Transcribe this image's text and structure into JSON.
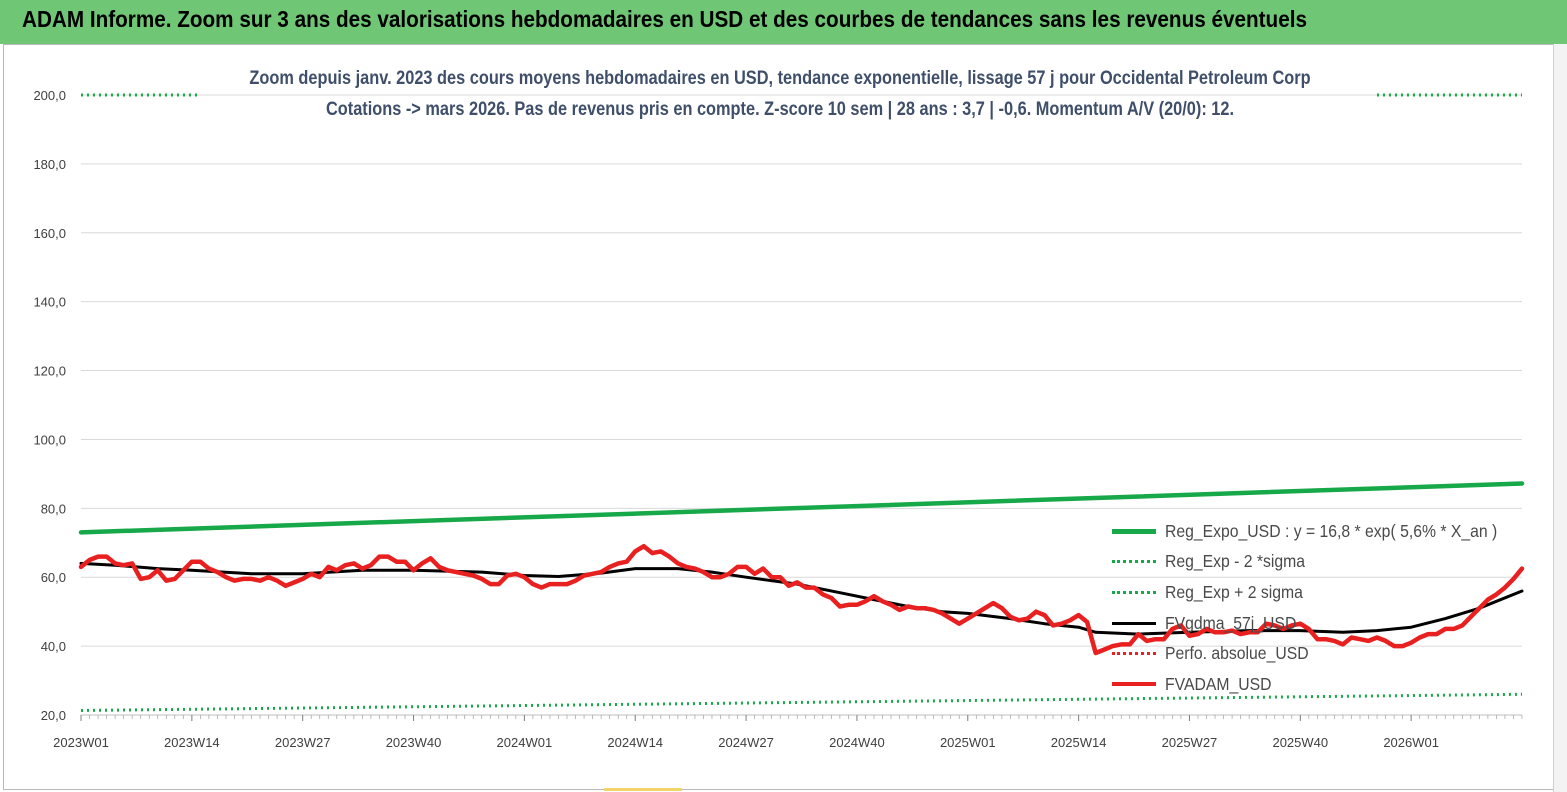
{
  "banner": {
    "title": "ADAM Informe. Zoom sur 3 ans des valorisations hebdomadaires en USD et des courbes de tendances sans les revenus éventuels"
  },
  "colors": {
    "banner_bg": "#6fc776",
    "reg_expo": "#17a84a",
    "gdma": "#000000",
    "fvadam": "#e82020",
    "grid": "#d9d9d9"
  },
  "chart_data": {
    "type": "line",
    "title_line1": "Zoom depuis janv. 2023 des cours moyens hebdomadaires en USD, tendance exponentielle, lissage 57 j pour Occidental Petroleum Corp",
    "title_line2": "Cotations -> mars 2026. Pas de revenus pris en  compte. Z-score 10 sem  | 28 ans : 3,7 | -0,6. Momentum A/V (20/0): 12.",
    "ylim": [
      20,
      200
    ],
    "y_ticks": [
      "20,0",
      "40,0",
      "60,0",
      "80,0",
      "100,0",
      "120,0",
      "140,0",
      "160,0",
      "180,0",
      "200,0"
    ],
    "x_start_week_index": 0,
    "x_end_week_index": 169,
    "x_ticks": [
      {
        "label": "2023W01",
        "week": 0
      },
      {
        "label": "2023W14",
        "week": 13
      },
      {
        "label": "2023W27",
        "week": 26
      },
      {
        "label": "2023W40",
        "week": 39
      },
      {
        "label": "2024W01",
        "week": 52
      },
      {
        "label": "2024W14",
        "week": 65
      },
      {
        "label": "2024W27",
        "week": 78
      },
      {
        "label": "2024W40",
        "week": 91
      },
      {
        "label": "2025W01",
        "week": 104
      },
      {
        "label": "2025W14",
        "week": 117
      },
      {
        "label": "2025W27",
        "week": 130
      },
      {
        "label": "2025W40",
        "week": 143
      },
      {
        "label": "2026W01",
        "week": 156
      }
    ],
    "legend": [
      "Reg_Expo_USD : y = 16,8 * exp( 5,6% *  X_an )",
      "Reg_Exp - 2 *sigma",
      "Reg_Exp + 2 sigma",
      "FVgdma_57j_USD",
      "Perfo. absolue_USD",
      "FVADAM_USD"
    ],
    "series": [
      {
        "name": "Reg_Expo_USD",
        "style": "solid-thick",
        "color": "#17a84a",
        "points": [
          [
            0,
            73.0
          ],
          [
            169,
            87.2
          ]
        ]
      },
      {
        "name": "Reg_Exp - 2 *sigma",
        "style": "dotted",
        "color": "#17a84a",
        "points": [
          [
            0,
            21.3
          ],
          [
            169,
            26.0
          ]
        ]
      },
      {
        "name": "Reg_Exp + 2 sigma",
        "style": "dotted",
        "color": "#17a84a",
        "points": [
          [
            0,
            200.0
          ],
          [
            14,
            200.0
          ],
          [
            null,
            null
          ],
          [
            152,
            200.0
          ],
          [
            169,
            200.0
          ]
        ]
      },
      {
        "name": "FVgdma_57j_USD",
        "style": "solid",
        "color": "#000000",
        "points": [
          [
            0,
            64
          ],
          [
            4,
            63.5
          ],
          [
            9,
            62.5
          ],
          [
            13,
            62
          ],
          [
            20,
            61
          ],
          [
            26,
            61
          ],
          [
            33,
            62
          ],
          [
            39,
            62
          ],
          [
            47,
            61.5
          ],
          [
            52,
            60.5
          ],
          [
            56,
            60.2
          ],
          [
            61,
            61.2
          ],
          [
            65,
            62.5
          ],
          [
            70,
            62.5
          ],
          [
            74,
            61.5
          ],
          [
            78,
            60
          ],
          [
            84,
            58
          ],
          [
            89,
            55.5
          ],
          [
            93,
            53.5
          ],
          [
            97,
            51.5
          ],
          [
            101,
            50
          ],
          [
            104,
            49.5
          ],
          [
            109,
            48
          ],
          [
            113,
            46.5
          ],
          [
            117,
            45.5
          ],
          [
            119,
            44
          ],
          [
            124,
            43.5
          ],
          [
            130,
            44
          ],
          [
            137,
            44.5
          ],
          [
            143,
            44.5
          ],
          [
            148,
            44
          ],
          [
            152,
            44.5
          ],
          [
            156,
            45.5
          ],
          [
            160,
            48
          ],
          [
            164,
            51
          ],
          [
            169,
            56
          ]
        ]
      },
      {
        "name": "Perfo. absolue_USD",
        "style": "dotted",
        "color": "#e82020",
        "points": []
      },
      {
        "name": "FVADAM_USD",
        "style": "solid-thick",
        "color": "#e82020",
        "points": [
          [
            0,
            63
          ],
          [
            1,
            65
          ],
          [
            2,
            66
          ],
          [
            3,
            66
          ],
          [
            4,
            64
          ],
          [
            5,
            63.5
          ],
          [
            6,
            64
          ],
          [
            7,
            59.5
          ],
          [
            8,
            60
          ],
          [
            9,
            62
          ],
          [
            10,
            59
          ],
          [
            11,
            59.5
          ],
          [
            12,
            62
          ],
          [
            13,
            64.5
          ],
          [
            14,
            64.5
          ],
          [
            15,
            62.5
          ],
          [
            16,
            61.5
          ],
          [
            17,
            60
          ],
          [
            18,
            59
          ],
          [
            19,
            59.5
          ],
          [
            20,
            59.5
          ],
          [
            21,
            59
          ],
          [
            22,
            60
          ],
          [
            23,
            59
          ],
          [
            24,
            57.5
          ],
          [
            25,
            58.5
          ],
          [
            26,
            59.5
          ],
          [
            27,
            61
          ],
          [
            28,
            60
          ],
          [
            29,
            63
          ],
          [
            30,
            62
          ],
          [
            31,
            63.5
          ],
          [
            32,
            64
          ],
          [
            33,
            62.5
          ],
          [
            34,
            63.5
          ],
          [
            35,
            66
          ],
          [
            36,
            66
          ],
          [
            37,
            64.5
          ],
          [
            38,
            64.5
          ],
          [
            39,
            62
          ],
          [
            40,
            64
          ],
          [
            41,
            65.5
          ],
          [
            42,
            63
          ],
          [
            43,
            62
          ],
          [
            44,
            61.5
          ],
          [
            45,
            61
          ],
          [
            46,
            60.5
          ],
          [
            47,
            59.5
          ],
          [
            48,
            58
          ],
          [
            49,
            58
          ],
          [
            50,
            60.5
          ],
          [
            51,
            61
          ],
          [
            52,
            60
          ],
          [
            53,
            58
          ],
          [
            54,
            57
          ],
          [
            55,
            58
          ],
          [
            56,
            58
          ],
          [
            57,
            58
          ],
          [
            58,
            59
          ],
          [
            59,
            60.5
          ],
          [
            60,
            61
          ],
          [
            61,
            61.5
          ],
          [
            62,
            63
          ],
          [
            63,
            64
          ],
          [
            64,
            64.5
          ],
          [
            65,
            67.5
          ],
          [
            66,
            69
          ],
          [
            67,
            67
          ],
          [
            68,
            67.5
          ],
          [
            69,
            66
          ],
          [
            70,
            64
          ],
          [
            71,
            63
          ],
          [
            72,
            62.5
          ],
          [
            73,
            61.5
          ],
          [
            74,
            60
          ],
          [
            75,
            60
          ],
          [
            76,
            61
          ],
          [
            77,
            63
          ],
          [
            78,
            63
          ],
          [
            79,
            61
          ],
          [
            80,
            62.5
          ],
          [
            81,
            60
          ],
          [
            82,
            60
          ],
          [
            83,
            57.5
          ],
          [
            84,
            58.5
          ],
          [
            85,
            57
          ],
          [
            86,
            57
          ],
          [
            87,
            55
          ],
          [
            88,
            54
          ],
          [
            89,
            51.5
          ],
          [
            90,
            52
          ],
          [
            91,
            52
          ],
          [
            92,
            53
          ],
          [
            93,
            54.5
          ],
          [
            94,
            53
          ],
          [
            95,
            52
          ],
          [
            96,
            50.5
          ],
          [
            97,
            51.5
          ],
          [
            98,
            51
          ],
          [
            99,
            51
          ],
          [
            100,
            50.5
          ],
          [
            101,
            49.5
          ],
          [
            102,
            48
          ],
          [
            103,
            46.5
          ],
          [
            104,
            48
          ],
          [
            105,
            49.5
          ],
          [
            106,
            51
          ],
          [
            107,
            52.5
          ],
          [
            108,
            51
          ],
          [
            109,
            48.5
          ],
          [
            110,
            47.5
          ],
          [
            111,
            48
          ],
          [
            112,
            50
          ],
          [
            113,
            49
          ],
          [
            114,
            46
          ],
          [
            115,
            46.5
          ],
          [
            116,
            47.5
          ],
          [
            117,
            49
          ],
          [
            118,
            47
          ],
          [
            119,
            38
          ],
          [
            120,
            39
          ],
          [
            121,
            40
          ],
          [
            122,
            40.5
          ],
          [
            123,
            40.5
          ],
          [
            124,
            43.5
          ],
          [
            125,
            41.5
          ],
          [
            126,
            42
          ],
          [
            127,
            42
          ],
          [
            128,
            45
          ],
          [
            129,
            46
          ],
          [
            130,
            43
          ],
          [
            131,
            43.5
          ],
          [
            132,
            45
          ],
          [
            133,
            44
          ],
          [
            134,
            44
          ],
          [
            135,
            44.5
          ],
          [
            136,
            43.5
          ],
          [
            137,
            44
          ],
          [
            138,
            44
          ],
          [
            139,
            46.5
          ],
          [
            140,
            46
          ],
          [
            141,
            45
          ],
          [
            142,
            46
          ],
          [
            143,
            46.5
          ],
          [
            144,
            45
          ],
          [
            145,
            42
          ],
          [
            146,
            42
          ],
          [
            147,
            41.5
          ],
          [
            148,
            40.5
          ],
          [
            149,
            42.5
          ],
          [
            150,
            42
          ],
          [
            151,
            41.5
          ],
          [
            152,
            42.5
          ],
          [
            153,
            41.5
          ],
          [
            154,
            40
          ],
          [
            155,
            40
          ],
          [
            156,
            41
          ],
          [
            157,
            42.5
          ],
          [
            158,
            43.5
          ],
          [
            159,
            43.5
          ],
          [
            160,
            45
          ],
          [
            161,
            45
          ],
          [
            162,
            46
          ],
          [
            163,
            48.5
          ],
          [
            164,
            51
          ],
          [
            165,
            53.5
          ],
          [
            166,
            55
          ],
          [
            167,
            57
          ],
          [
            168,
            59.5
          ],
          [
            169,
            62.5
          ]
        ]
      }
    ]
  }
}
